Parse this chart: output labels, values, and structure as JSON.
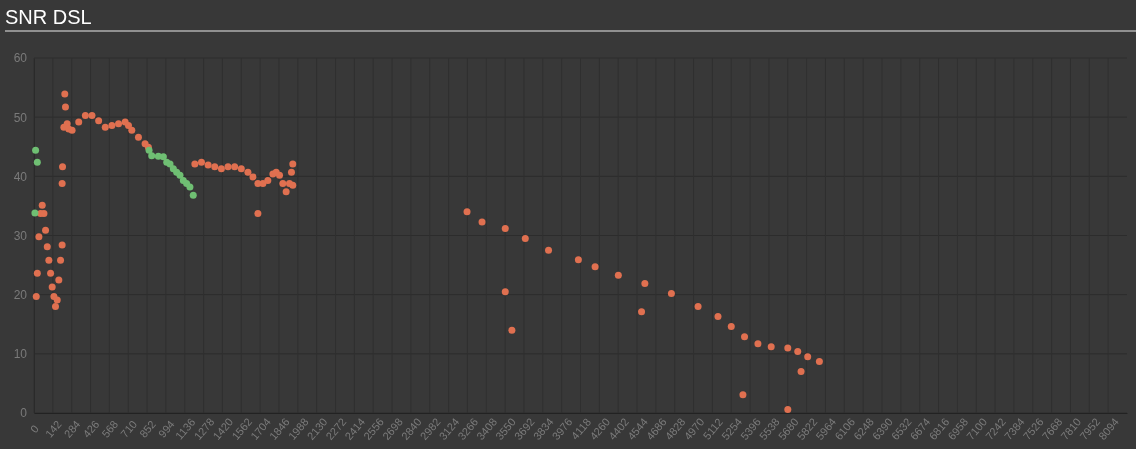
{
  "chart_data": {
    "type": "scatter",
    "title": "SNR DSL",
    "xlim": [
      0,
      8236
    ],
    "ylim": [
      0,
      60
    ],
    "yticks": [
      0,
      10,
      20,
      30,
      40,
      50,
      60
    ],
    "xticks": [
      0,
      142,
      284,
      426,
      568,
      710,
      852,
      994,
      1136,
      1278,
      1420,
      1562,
      1704,
      1846,
      1988,
      2130,
      2272,
      2414,
      2556,
      2698,
      2840,
      2982,
      3124,
      3266,
      3408,
      3550,
      3692,
      3834,
      3976,
      4118,
      4260,
      4402,
      4544,
      4686,
      4828,
      4970,
      5112,
      5254,
      5396,
      5538,
      5680,
      5822,
      5964,
      6106,
      6248,
      6390,
      6532,
      6674,
      6816,
      6958,
      7100,
      7242,
      7384,
      7526,
      7668,
      7810,
      7952,
      8094
    ],
    "grid": true,
    "marker": "circle",
    "series": [
      {
        "color": "#e07050",
        "x": [
          17,
          25,
          37,
          50,
          62,
          75,
          87,
          100,
          112,
          125,
          137,
          150,
          162,
          175,
          187,
          200,
          212,
          212,
          215,
          225,
          232,
          237,
          250,
          262,
          287,
          337,
          387,
          437,
          487,
          537,
          587,
          637,
          687,
          712,
          737,
          787,
          837,
          862,
          1212,
          1262,
          1312,
          1362,
          1412,
          1462,
          1512,
          1562,
          1612,
          1650,
          1687,
          1687,
          1725,
          1762,
          1800,
          1825,
          1850,
          1875,
          1900,
          1925,
          1950,
          1950,
          1940,
          3263,
          3376,
          3551,
          3702,
          3877,
          4102,
          4228,
          4403,
          4603,
          4803,
          5004,
          5154,
          5254,
          5354,
          5455,
          5555,
          5680,
          5755,
          5830,
          5918,
          3551,
          3601,
          4578,
          5780,
          5342,
          5680
        ],
        "values": [
          19.7,
          23.6,
          29.8,
          33.7,
          35.1,
          33.7,
          30.9,
          28.1,
          25.8,
          23.6,
          21.3,
          19.7,
          18,
          19.1,
          22.5,
          25.8,
          28.4,
          38.8,
          41.6,
          48.3,
          53.9,
          51.7,
          48.9,
          48,
          47.8,
          49.2,
          50.3,
          50.3,
          49.4,
          48.3,
          48.6,
          48.9,
          49.2,
          48.6,
          47.8,
          46.6,
          45.5,
          44.9,
          42.1,
          42.4,
          41.9,
          41.6,
          41.3,
          41.6,
          41.6,
          41.3,
          40.7,
          39.9,
          38.8,
          33.7,
          38.8,
          39.3,
          40.4,
          40.7,
          40.2,
          38.8,
          37.4,
          38.8,
          38.5,
          42.1,
          40.7,
          34,
          32.3,
          31.2,
          29.5,
          27.5,
          25.9,
          24.7,
          23.3,
          21.9,
          20.2,
          18,
          16.3,
          14.6,
          12.9,
          11.7,
          11.2,
          11,
          10.4,
          9.5,
          8.7,
          20.5,
          14,
          17.1,
          7,
          3.1,
          0.6
        ]
      },
      {
        "color": "#6fbf73",
        "x": [
          7,
          12,
          25,
          867,
          887,
          937,
          975,
          1000,
          1025,
          1050,
          1075,
          1100,
          1125,
          1150,
          1175,
          1200
        ],
        "values": [
          33.8,
          44.4,
          42.4,
          44.4,
          43.5,
          43.4,
          43.3,
          42.4,
          42.1,
          41.3,
          40.7,
          40.2,
          39.3,
          38.8,
          38.2,
          36.8
        ]
      }
    ]
  }
}
